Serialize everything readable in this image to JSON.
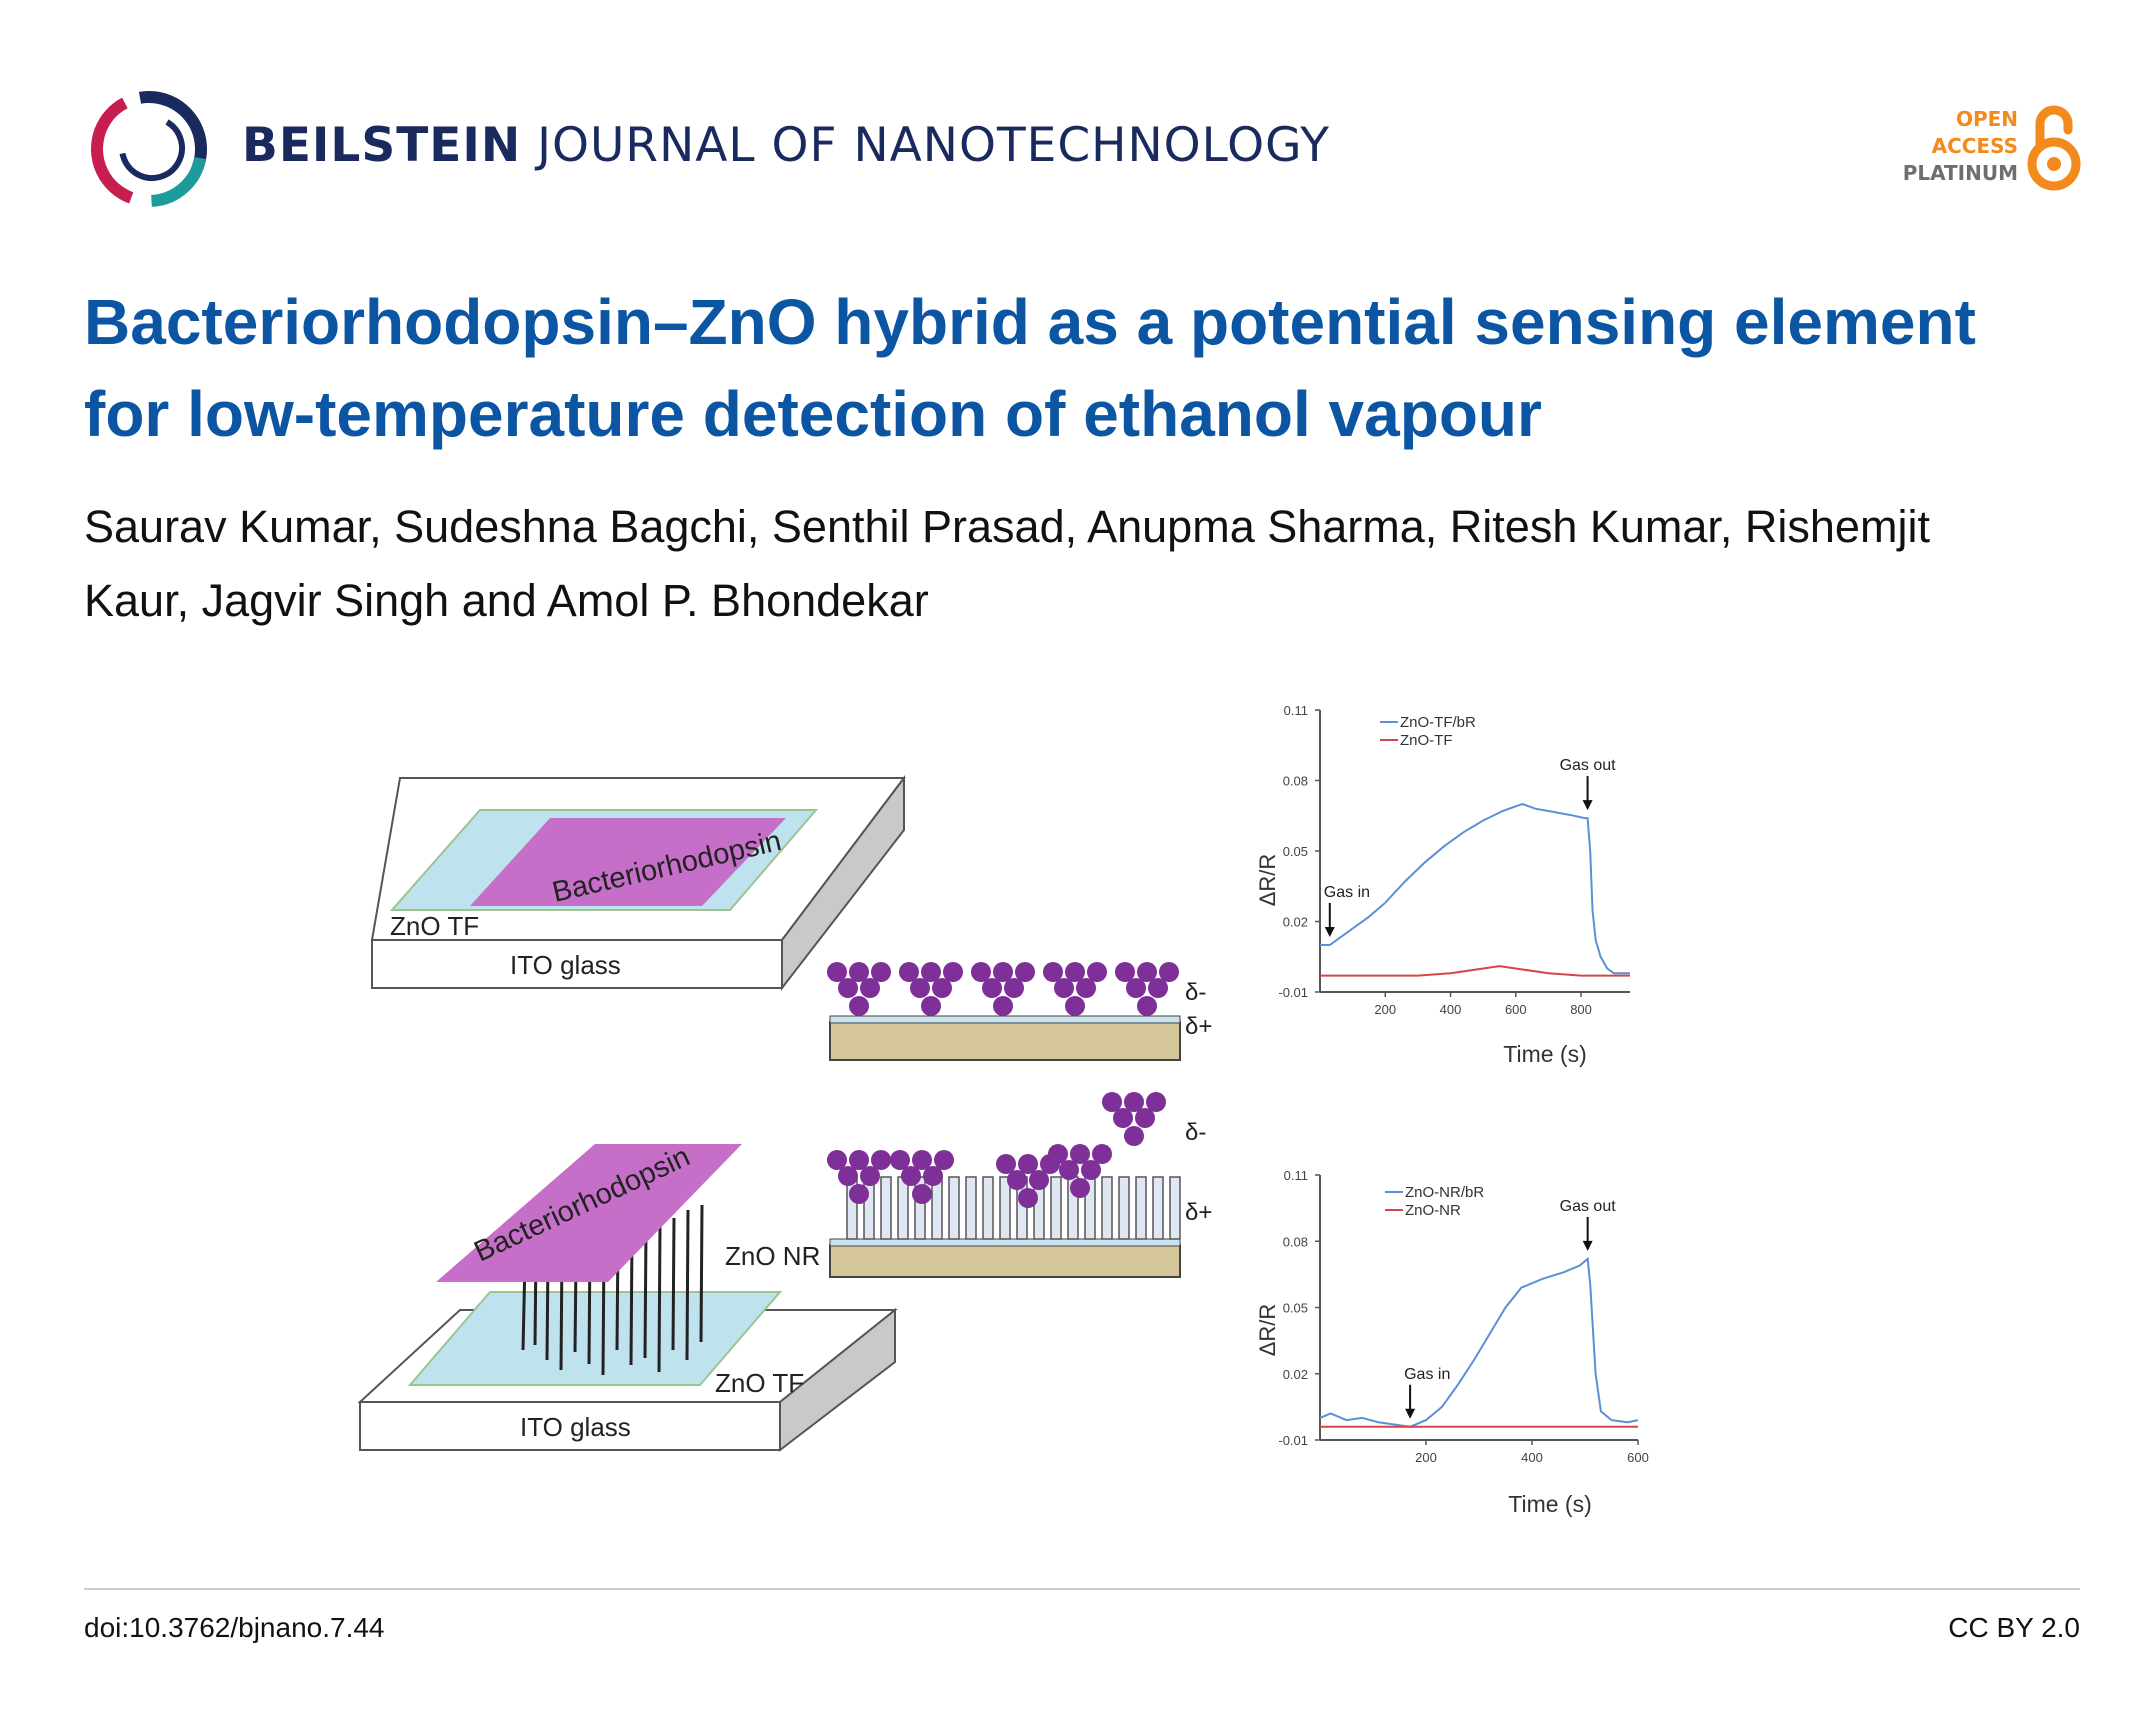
{
  "header": {
    "journal_bold": "BEILSTEIN",
    "journal_rest": "JOURNAL OF NANOTECHNOLOGY",
    "oa_line1": "OPEN",
    "oa_line2": "ACCESS",
    "oa_line3": "PLATINUM"
  },
  "article": {
    "title": "Bacteriorhodopsin–ZnO hybrid as a potential sensing element for low-temperature detection of ethanol vapour",
    "authors": "Saurav Kumar, Sudeshna Bagchi, Senthil Prasad, Anupma Sharma, Ritesh Kumar, Rishemjit Kaur, Jagvir Singh and Amol P. Bhondekar"
  },
  "figure": {
    "schematic": {
      "top_film_label": "Bacteriorhodopsin",
      "top_zno_label": "ZnO TF",
      "top_glass_label": "ITO glass",
      "bottom_film_label": "Bacteriorhodopsin",
      "bottom_nr_label": "ZnO NR",
      "bottom_zno_label": "ZnO TF",
      "bottom_glass_label": "ITO glass",
      "delta_minus": "δ-",
      "delta_plus": "δ+"
    }
  },
  "chart_data": [
    {
      "type": "line",
      "ylabel": "ΔR/R",
      "xlabel": "Time (s)",
      "xlim": [
        0,
        950
      ],
      "ylim": [
        -0.01,
        0.11
      ],
      "yticks": [
        "0.11",
        "0.08",
        "0.05",
        "0.02",
        "-0.01"
      ],
      "xticks": [
        "200",
        "400",
        "600",
        "800"
      ],
      "annotations": [
        "Gas in",
        "Gas out"
      ],
      "annotation_x": [
        30,
        820
      ],
      "series": [
        {
          "name": "ZnO-TF/bR",
          "color": "#5b8fd6",
          "x": [
            0,
            30,
            60,
            100,
            150,
            200,
            260,
            320,
            380,
            440,
            500,
            560,
            600,
            620,
            660,
            700,
            740,
            780,
            810,
            820,
            828,
            835,
            845,
            860,
            880,
            900,
            920,
            950
          ],
          "y": [
            0.01,
            0.01,
            0.013,
            0.017,
            0.022,
            0.028,
            0.037,
            0.045,
            0.052,
            0.058,
            0.063,
            0.067,
            0.069,
            0.07,
            0.068,
            0.067,
            0.066,
            0.065,
            0.064,
            0.064,
            0.05,
            0.025,
            0.012,
            0.005,
            0.0,
            -0.002,
            -0.002,
            -0.002
          ]
        },
        {
          "name": "ZnO-TF",
          "color": "#d64545",
          "x": [
            0,
            100,
            200,
            300,
            400,
            500,
            550,
            600,
            700,
            800,
            900,
            950
          ],
          "y": [
            -0.003,
            -0.003,
            -0.003,
            -0.003,
            -0.002,
            0.0,
            0.001,
            0.0,
            -0.002,
            -0.003,
            -0.003,
            -0.003
          ]
        }
      ]
    },
    {
      "type": "line",
      "ylabel": "ΔR/R",
      "xlabel": "Time (s)",
      "xlim": [
        0,
        600
      ],
      "ylim": [
        -0.01,
        0.11
      ],
      "yticks": [
        "0.11",
        "0.08",
        "0.05",
        "0.02",
        "-0.01"
      ],
      "xticks": [
        "200",
        "400",
        "600"
      ],
      "annotations": [
        "Gas in",
        "Gas out"
      ],
      "annotation_x": [
        170,
        505
      ],
      "series": [
        {
          "name": "ZnO-NR/bR",
          "color": "#5b8fd6",
          "x": [
            0,
            20,
            50,
            80,
            110,
            140,
            170,
            200,
            230,
            260,
            290,
            320,
            350,
            380,
            420,
            460,
            490,
            505,
            510,
            520,
            530,
            550,
            580,
            600
          ],
          "y": [
            0.0,
            0.002,
            -0.001,
            0.0,
            -0.002,
            -0.003,
            -0.004,
            -0.001,
            0.005,
            0.015,
            0.026,
            0.038,
            0.05,
            0.059,
            0.063,
            0.066,
            0.069,
            0.072,
            0.06,
            0.02,
            0.003,
            -0.001,
            -0.002,
            -0.001
          ]
        },
        {
          "name": "ZnO-NR",
          "color": "#d64545",
          "x": [
            0,
            100,
            200,
            300,
            400,
            500,
            600
          ],
          "y": [
            -0.004,
            -0.004,
            -0.004,
            -0.004,
            -0.004,
            -0.004,
            -0.004
          ]
        }
      ]
    }
  ],
  "footer": {
    "doi": "doi:10.3762/bjnano.7.44",
    "license": "CC BY 2.0"
  }
}
